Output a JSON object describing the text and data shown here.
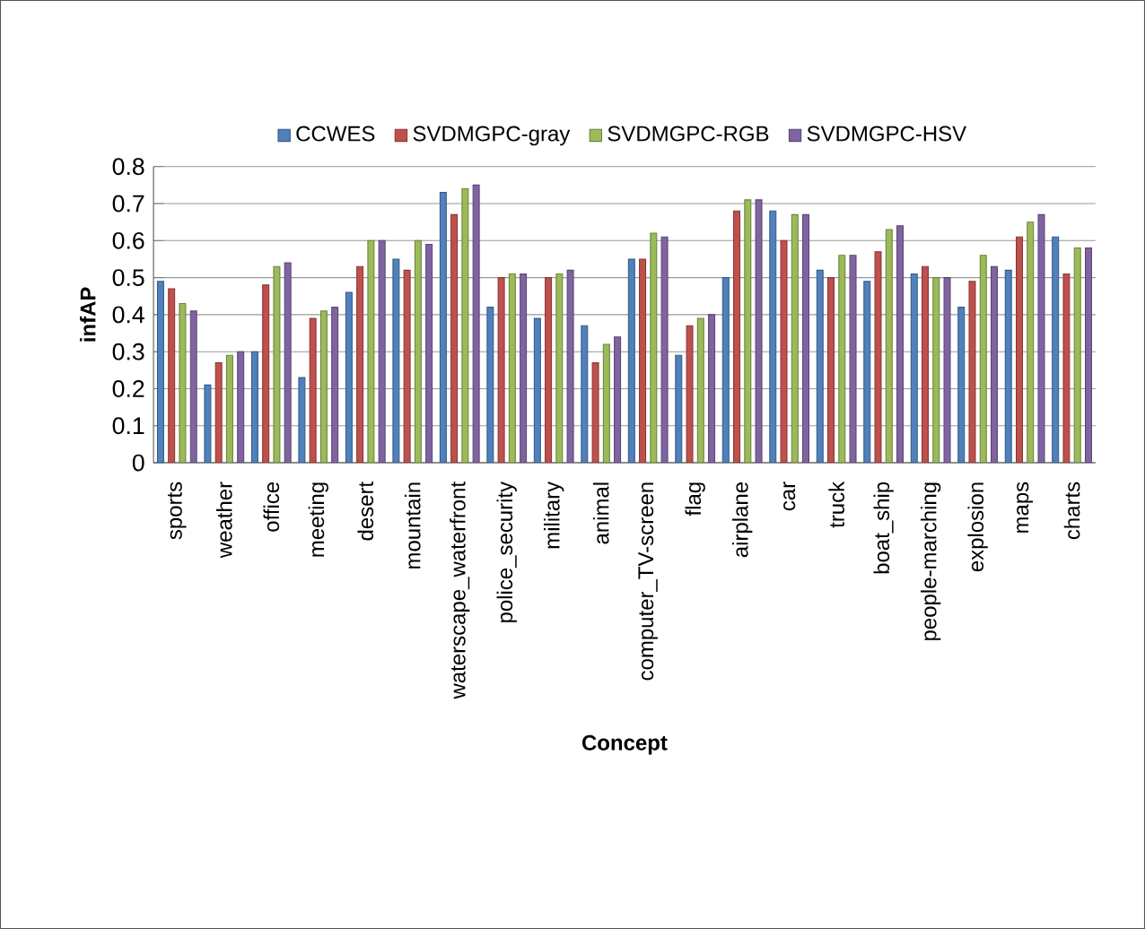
{
  "chart_data": {
    "type": "bar",
    "xlabel": "Concept",
    "ylabel": "infAP",
    "categories": [
      "sports",
      "weather",
      "office",
      "meeting",
      "desert",
      "mountain",
      "waterscape_waterfront",
      "police_security",
      "military",
      "animal",
      "computer_TV-screen",
      "flag",
      "airplane",
      "car",
      "truck",
      "boat_ship",
      "people-marching",
      "explosion",
      "maps",
      "charts"
    ],
    "series": [
      {
        "name": "CCWES",
        "color": "#4f81bd",
        "values": [
          0.49,
          0.21,
          0.3,
          0.23,
          0.46,
          0.55,
          0.73,
          0.42,
          0.39,
          0.37,
          0.55,
          0.29,
          0.5,
          0.68,
          0.52,
          0.49,
          0.51,
          0.42,
          0.52,
          0.61
        ]
      },
      {
        "name": "SVDMGPC-gray",
        "color": "#c0504d",
        "values": [
          0.47,
          0.27,
          0.48,
          0.39,
          0.53,
          0.52,
          0.67,
          0.5,
          0.5,
          0.27,
          0.55,
          0.37,
          0.68,
          0.6,
          0.5,
          0.57,
          0.53,
          0.49,
          0.61,
          0.51
        ]
      },
      {
        "name": "SVDMGPC-RGB",
        "color": "#9bbb59",
        "values": [
          0.43,
          0.29,
          0.53,
          0.41,
          0.6,
          0.6,
          0.74,
          0.51,
          0.51,
          0.32,
          0.62,
          0.39,
          0.71,
          0.67,
          0.56,
          0.63,
          0.5,
          0.56,
          0.65,
          0.58
        ]
      },
      {
        "name": "SVDMGPC-HSV",
        "color": "#8064a2",
        "values": [
          0.41,
          0.3,
          0.54,
          0.42,
          0.6,
          0.59,
          0.75,
          0.51,
          0.52,
          0.34,
          0.61,
          0.4,
          0.71,
          0.67,
          0.56,
          0.64,
          0.5,
          0.53,
          0.67,
          0.58
        ]
      }
    ],
    "ylim": [
      0,
      0.8
    ],
    "yticks": [
      0,
      0.1,
      0.2,
      0.3,
      0.4,
      0.5,
      0.6,
      0.7,
      0.8
    ],
    "grid": "y",
    "legend": "top"
  }
}
